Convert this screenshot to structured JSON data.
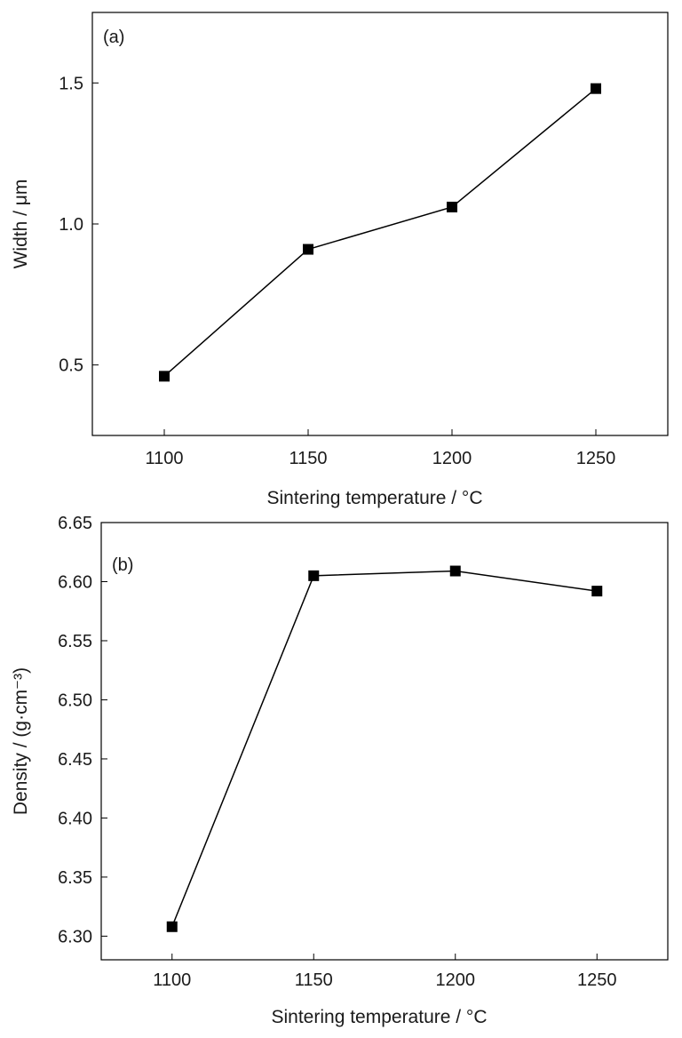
{
  "chart_data": [
    {
      "type": "line",
      "panel_label": "(a)",
      "xlabel": "Sintering temperature / °C",
      "ylabel": "Width / μm",
      "x": [
        1100,
        1150,
        1200,
        1250
      ],
      "series": [
        {
          "values": [
            0.46,
            0.91,
            1.06,
            1.48
          ]
        }
      ],
      "xlim": [
        1075,
        1275
      ],
      "ylim": [
        0.25,
        1.75
      ],
      "xticks": [
        "1100",
        "1150",
        "1200",
        "1250"
      ],
      "yticks": [
        "0.5",
        "1.0",
        "1.5"
      ],
      "marker": "square",
      "grid": false,
      "line_color": "#000000"
    },
    {
      "type": "line",
      "panel_label": "(b)",
      "xlabel": "Sintering temperature / °C",
      "ylabel": "Density / (g·cm⁻³)",
      "x": [
        1100,
        1150,
        1200,
        1250
      ],
      "series": [
        {
          "values": [
            6.308,
            6.605,
            6.609,
            6.592
          ]
        }
      ],
      "xlim": [
        1075,
        1275
      ],
      "ylim": [
        6.28,
        6.65
      ],
      "xticks": [
        "1100",
        "1150",
        "1200",
        "1250"
      ],
      "yticks": [
        "6.30",
        "6.35",
        "6.40",
        "6.45",
        "6.50",
        "6.55",
        "6.60",
        "6.65"
      ],
      "marker": "square",
      "grid": false,
      "line_color": "#000000"
    }
  ]
}
